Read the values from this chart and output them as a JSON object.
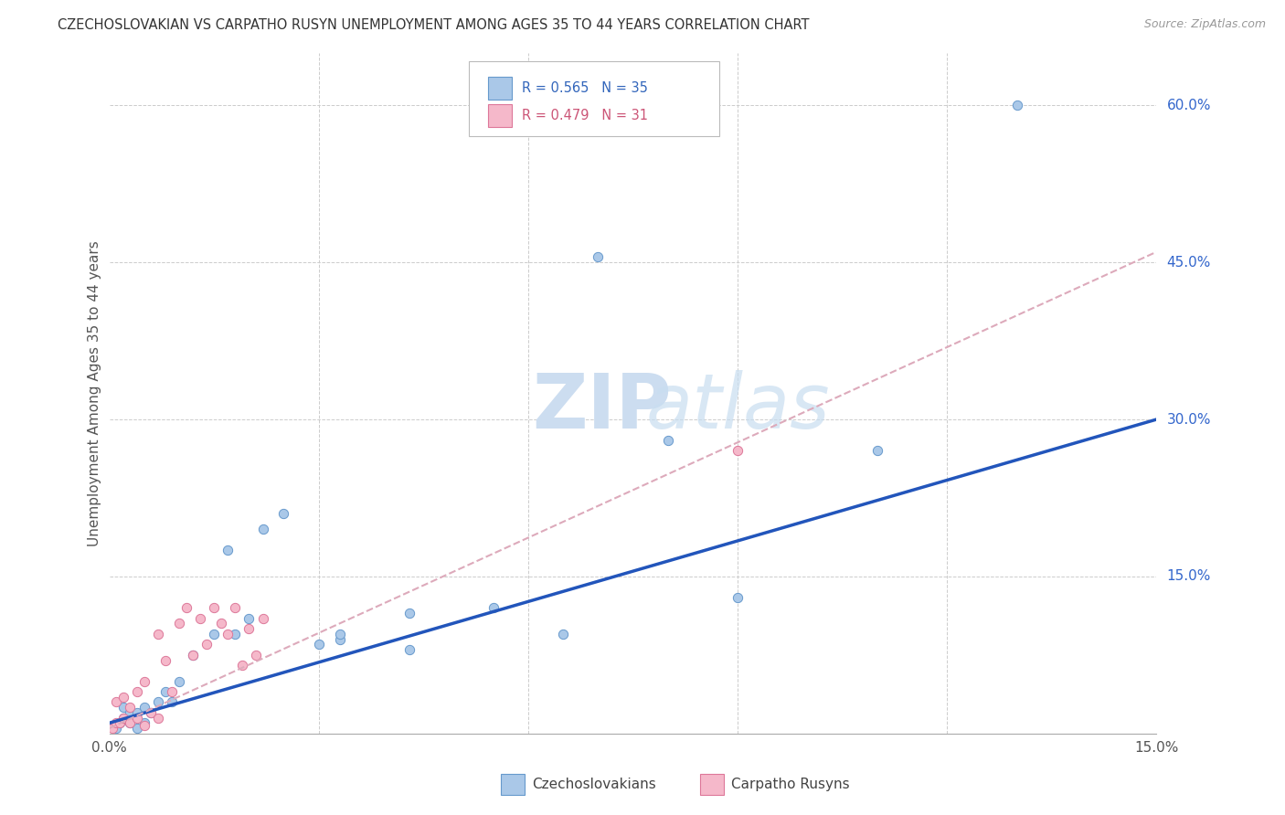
{
  "title": "CZECHOSLOVAKIAN VS CARPATHO RUSYN UNEMPLOYMENT AMONG AGES 35 TO 44 YEARS CORRELATION CHART",
  "source": "Source: ZipAtlas.com",
  "ylabel": "Unemployment Among Ages 35 to 44 years",
  "xlim": [
    0.0,
    0.15
  ],
  "ylim": [
    0.0,
    0.65
  ],
  "ytick_positions": [
    0.0,
    0.15,
    0.3,
    0.45,
    0.6
  ],
  "ytick_labels_right": [
    "",
    "15.0%",
    "30.0%",
    "45.0%",
    "60.0%"
  ],
  "background_color": "#ffffff",
  "grid_color": "#cccccc",
  "czech_color": "#aac8e8",
  "czech_edge_color": "#6699cc",
  "rusyn_color": "#f5b8ca",
  "rusyn_edge_color": "#dd7799",
  "line_czech_color": "#2255bb",
  "line_rusyn_color": "#ddaabb",
  "czech_scatter_x": [
    0.0005,
    0.001,
    0.0015,
    0.002,
    0.002,
    0.003,
    0.003,
    0.004,
    0.004,
    0.005,
    0.005,
    0.006,
    0.007,
    0.008,
    0.009,
    0.01,
    0.012,
    0.015,
    0.017,
    0.018,
    0.02,
    0.022,
    0.025,
    0.03,
    0.033,
    0.033,
    0.043,
    0.043,
    0.055,
    0.065,
    0.07,
    0.08,
    0.09,
    0.11,
    0.13
  ],
  "czech_scatter_y": [
    0.008,
    0.005,
    0.01,
    0.015,
    0.025,
    0.01,
    0.02,
    0.005,
    0.02,
    0.01,
    0.025,
    0.02,
    0.03,
    0.04,
    0.03,
    0.05,
    0.075,
    0.095,
    0.175,
    0.095,
    0.11,
    0.195,
    0.21,
    0.085,
    0.09,
    0.095,
    0.08,
    0.115,
    0.12,
    0.095,
    0.455,
    0.28,
    0.13,
    0.27,
    0.6
  ],
  "rusyn_scatter_x": [
    0.0005,
    0.001,
    0.001,
    0.0015,
    0.002,
    0.002,
    0.003,
    0.003,
    0.004,
    0.004,
    0.005,
    0.005,
    0.006,
    0.007,
    0.007,
    0.008,
    0.009,
    0.01,
    0.011,
    0.012,
    0.013,
    0.014,
    0.015,
    0.016,
    0.017,
    0.018,
    0.019,
    0.02,
    0.021,
    0.022,
    0.09
  ],
  "rusyn_scatter_y": [
    0.005,
    0.01,
    0.03,
    0.01,
    0.015,
    0.035,
    0.01,
    0.025,
    0.015,
    0.04,
    0.008,
    0.05,
    0.02,
    0.015,
    0.095,
    0.07,
    0.04,
    0.105,
    0.12,
    0.075,
    0.11,
    0.085,
    0.12,
    0.105,
    0.095,
    0.12,
    0.065,
    0.1,
    0.075,
    0.11,
    0.27
  ],
  "czech_line_x": [
    0.0,
    0.15
  ],
  "czech_line_y": [
    0.01,
    0.3
  ],
  "rusyn_line_x": [
    0.0,
    0.15
  ],
  "rusyn_line_y": [
    0.005,
    0.46
  ]
}
